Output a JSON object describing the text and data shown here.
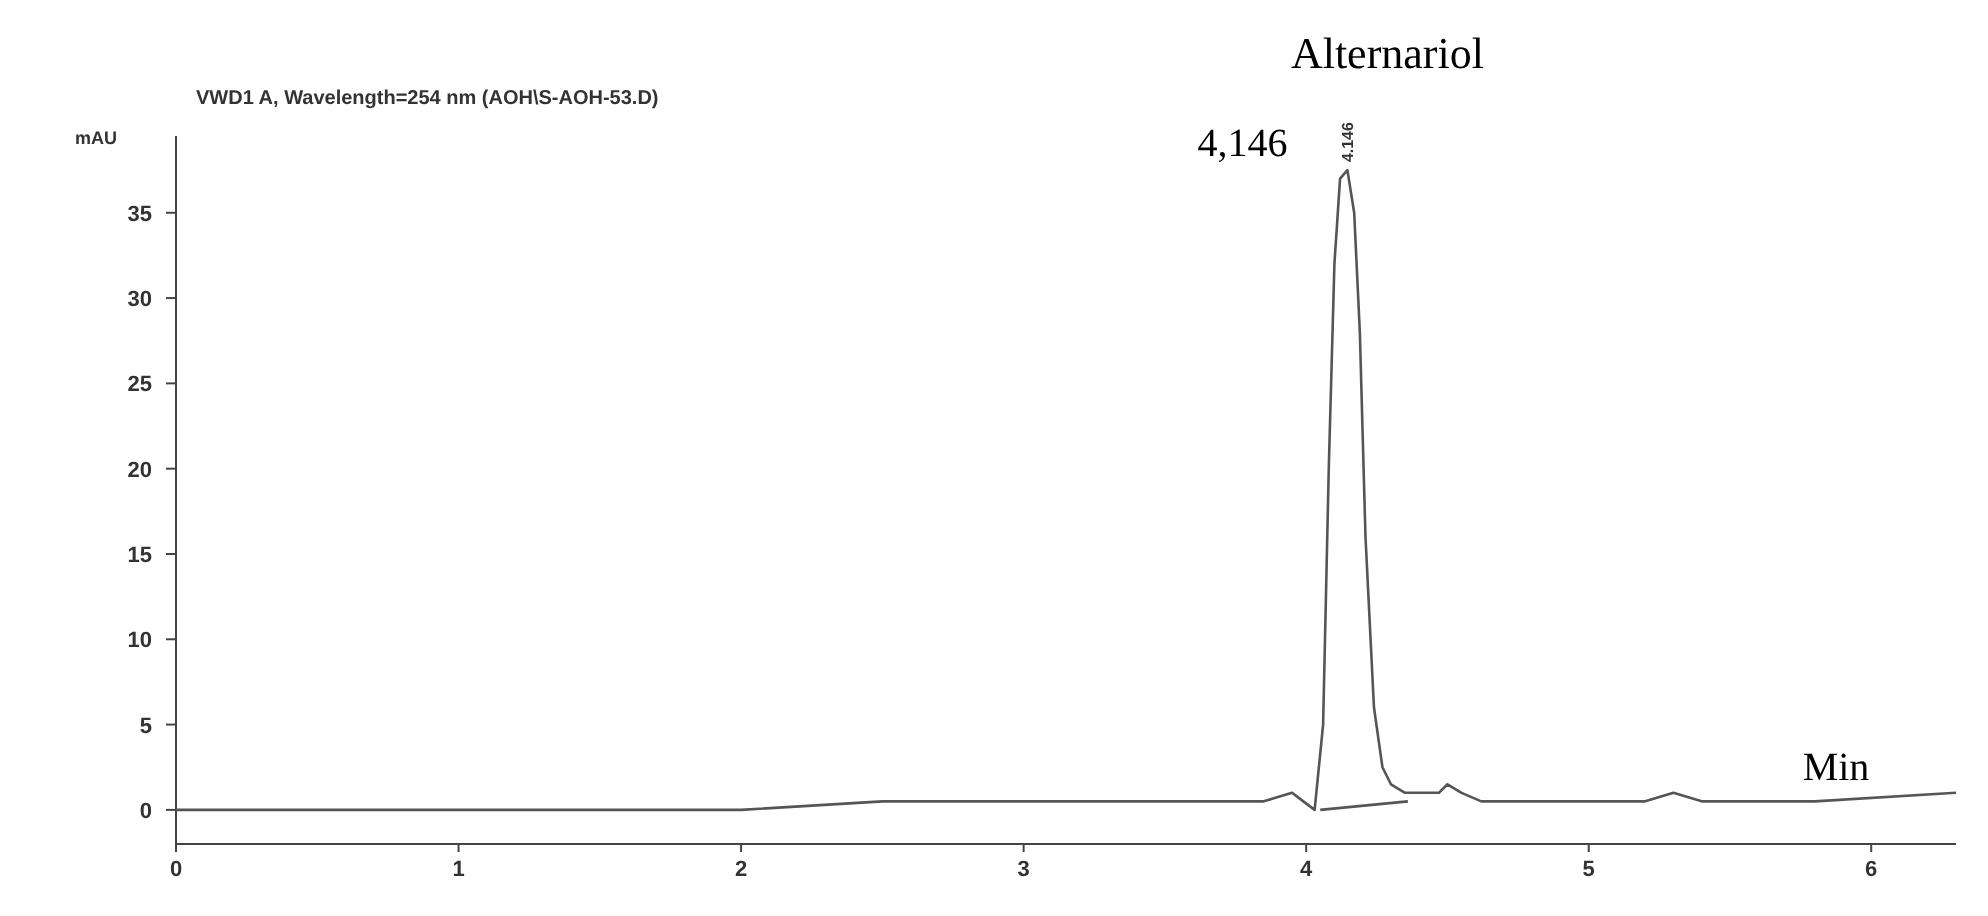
{
  "chart_data": {
    "type": "line",
    "title": "VWD1 A, Wavelength=254 nm (AOH\\S-AOH-53.D)",
    "xlabel": "Min",
    "ylabel": "mAU",
    "xlim": [
      0,
      6.3
    ],
    "xticks": [
      0,
      1,
      2,
      3,
      4,
      5,
      6
    ],
    "ylim": [
      -2,
      39.5
    ],
    "yticks": [
      0,
      5,
      10,
      15,
      20,
      25,
      30,
      35
    ],
    "marker": "none",
    "line_style": "solid",
    "series": [
      {
        "color": "#555555",
        "x": [
          0,
          0.5,
          1,
          1.5,
          2,
          2.5,
          3,
          3.5,
          3.85,
          3.95,
          3.99,
          4.03,
          4.06,
          4.08,
          4.1,
          4.12,
          4.146,
          4.17,
          4.19,
          4.21,
          4.24,
          4.27,
          4.3,
          4.35,
          4.42,
          4.47,
          4.5,
          4.55,
          4.62,
          4.8,
          5.2,
          5.3,
          5.4,
          5.8,
          6.3
        ],
        "values": [
          0,
          0,
          0,
          0,
          0,
          0.5,
          0.5,
          0.5,
          0.5,
          1,
          0.5,
          0,
          5,
          20,
          32,
          37,
          37.5,
          35,
          28,
          16,
          6,
          2.5,
          1.5,
          1,
          1,
          1,
          1.5,
          1,
          0.5,
          0.5,
          0.5,
          1,
          0.5,
          0.5,
          1
        ]
      },
      {
        "color": "#555555",
        "x": [
          4.05,
          4.36
        ],
        "values": [
          0,
          0.5
        ]
      }
    ],
    "annotations": [
      "Alternariol",
      "4,146",
      {
        "text": "4.146",
        "x": 4.146,
        "y": 37.5
      }
    ]
  }
}
